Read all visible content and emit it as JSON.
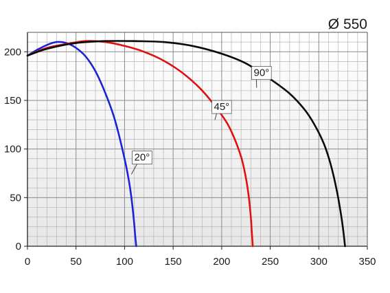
{
  "chart_data": {
    "type": "line",
    "title": "Ø 550",
    "xlabel": "",
    "ylabel": "",
    "xlim": [
      0,
      350
    ],
    "ylim": [
      0,
      220
    ],
    "x_ticks": [
      0,
      50,
      100,
      150,
      200,
      250,
      300,
      350
    ],
    "y_ticks": [
      0,
      50,
      100,
      150,
      200
    ],
    "x_tick_labels": [
      "0",
      "50",
      "100",
      "150",
      "200",
      "250",
      "300",
      "350"
    ],
    "y_tick_labels": [
      "0",
      "50",
      "100",
      "150",
      "200"
    ],
    "grid": true,
    "series": [
      {
        "name": "20°",
        "color": "#1c22d8",
        "points": [
          [
            0,
            196
          ],
          [
            10,
            202
          ],
          [
            20,
            207
          ],
          [
            30,
            210
          ],
          [
            40,
            209
          ],
          [
            50,
            204
          ],
          [
            60,
            195
          ],
          [
            70,
            180
          ],
          [
            80,
            158
          ],
          [
            90,
            130
          ],
          [
            100,
            90
          ],
          [
            105,
            64
          ],
          [
            108,
            42
          ],
          [
            110,
            22
          ],
          [
            111,
            10
          ],
          [
            112,
            0
          ]
        ]
      },
      {
        "name": "45°",
        "color": "#e01010",
        "points": [
          [
            0,
            196
          ],
          [
            20,
            204
          ],
          [
            40,
            208
          ],
          [
            60,
            211
          ],
          [
            80,
            210
          ],
          [
            100,
            206
          ],
          [
            120,
            200
          ],
          [
            140,
            191
          ],
          [
            160,
            178
          ],
          [
            180,
            160
          ],
          [
            200,
            135
          ],
          [
            210,
            118
          ],
          [
            220,
            92
          ],
          [
            225,
            70
          ],
          [
            228,
            50
          ],
          [
            230,
            30
          ],
          [
            231,
            15
          ],
          [
            232,
            0
          ]
        ]
      },
      {
        "name": "90°",
        "color": "#0a0a0a",
        "points": [
          [
            0,
            196
          ],
          [
            20,
            203
          ],
          [
            50,
            209
          ],
          [
            80,
            211
          ],
          [
            110,
            211
          ],
          [
            140,
            210
          ],
          [
            170,
            206
          ],
          [
            200,
            198
          ],
          [
            225,
            188
          ],
          [
            250,
            172
          ],
          [
            270,
            157
          ],
          [
            285,
            141
          ],
          [
            295,
            126
          ],
          [
            305,
            106
          ],
          [
            312,
            85
          ],
          [
            318,
            60
          ],
          [
            322,
            38
          ],
          [
            325,
            18
          ],
          [
            327,
            0
          ]
        ]
      }
    ],
    "annotations": [
      {
        "text": "20°",
        "x": 118,
        "y": 88,
        "arrow_to": [
          107,
          74
        ]
      },
      {
        "text": "45°",
        "x": 200,
        "y": 140,
        "arrow_to": [
          193,
          130
        ]
      },
      {
        "text": "90°",
        "x": 241,
        "y": 175,
        "arrow_to": [
          236,
          163
        ]
      }
    ]
  }
}
